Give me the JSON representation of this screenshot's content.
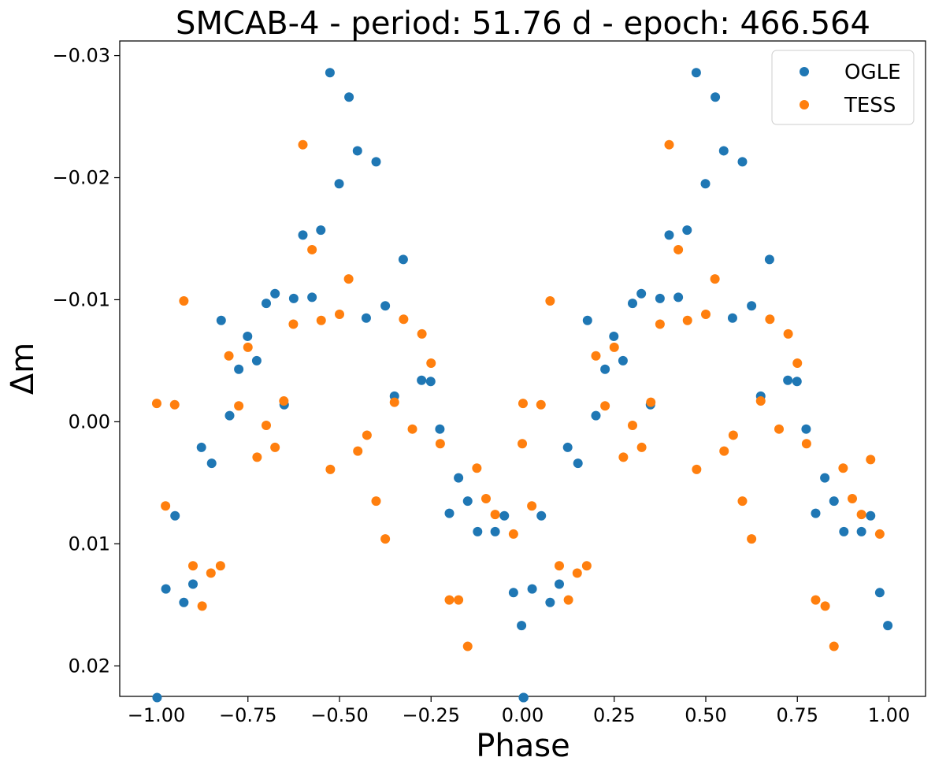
{
  "chart_data": {
    "type": "scatter",
    "title": "SMCAB-4 - period: 51.76 d - epoch: 466.564",
    "xlabel": "Phase",
    "ylabel": "Δm",
    "xlim": [
      -1.1,
      1.1
    ],
    "ylim": [
      0.0225,
      -0.0312
    ],
    "y_inverted": true,
    "x_ticks": [
      -1.0,
      -0.75,
      -0.5,
      -0.25,
      0.0,
      0.25,
      0.5,
      0.75,
      1.0
    ],
    "x_tick_labels": [
      "−1.00",
      "−0.75",
      "−0.50",
      "−0.25",
      "0.00",
      "0.25",
      "0.50",
      "0.75",
      "1.00"
    ],
    "y_ticks": [
      0.02,
      0.01,
      0.0,
      -0.01,
      -0.02,
      -0.03
    ],
    "y_tick_labels": [
      "0.02",
      "0.01",
      "0.00",
      "−0.01",
      "−0.02",
      "−0.03"
    ],
    "grid": false,
    "legend_position": "top-right",
    "series": [
      {
        "name": "OGLE",
        "color": "#1f77b4",
        "x": [
          -0.526,
          -0.474,
          -0.451,
          -0.4,
          -0.501,
          -0.326,
          -0.551,
          -0.6,
          -0.625,
          -0.575,
          -0.676,
          -0.7,
          -0.427,
          -0.375,
          -0.823,
          -0.751,
          -0.726,
          -0.775,
          -0.276,
          -0.35,
          -0.251,
          -0.651,
          -0.8,
          -0.226,
          -0.877,
          -0.849,
          -0.175,
          -0.15,
          -0.2,
          -0.05,
          -0.123,
          -0.075,
          -0.949,
          -0.974,
          -0.9,
          -0.025,
          -0.925,
          -0.003,
          -0.998,
          0.003,
          0.474,
          0.526,
          0.549,
          0.6,
          0.499,
          0.674,
          0.449,
          0.4,
          0.375,
          0.425,
          0.324,
          0.3,
          0.573,
          0.625,
          0.177,
          0.249,
          0.274,
          0.225,
          0.724,
          0.65,
          0.749,
          0.349,
          0.2,
          0.774,
          0.123,
          0.151,
          0.825,
          0.85,
          0.8,
          0.95,
          0.877,
          0.925,
          0.051,
          0.026,
          0.1,
          0.975,
          0.075,
          0.997,
          0.002
        ],
        "y": [
          -0.0286,
          -0.0266,
          -0.0222,
          -0.0213,
          -0.0195,
          -0.0133,
          -0.0157,
          -0.0153,
          -0.0101,
          -0.0102,
          -0.0105,
          -0.0097,
          -0.0085,
          -0.0095,
          -0.0083,
          -0.007,
          -0.005,
          -0.0043,
          -0.0034,
          -0.0021,
          -0.0033,
          -0.0014,
          -0.0005,
          0.0006,
          0.0021,
          0.0034,
          0.0046,
          0.0065,
          0.0075,
          0.0077,
          0.009,
          0.009,
          0.0077,
          0.0137,
          0.0133,
          0.014,
          0.0148,
          0.0167,
          0.0226,
          0.0226,
          -0.0286,
          -0.0266,
          -0.0222,
          -0.0213,
          -0.0195,
          -0.0133,
          -0.0157,
          -0.0153,
          -0.0101,
          -0.0102,
          -0.0105,
          -0.0097,
          -0.0085,
          -0.0095,
          -0.0083,
          -0.007,
          -0.005,
          -0.0043,
          -0.0034,
          -0.0021,
          -0.0033,
          -0.0014,
          -0.0005,
          0.0006,
          0.0021,
          0.0034,
          0.0046,
          0.0065,
          0.0075,
          0.0077,
          0.009,
          0.009,
          0.0077,
          0.0137,
          0.0133,
          0.014,
          0.0148,
          0.0167,
          0.0226
        ]
      },
      {
        "name": "TESS",
        "color": "#ff7f0e",
        "x": [
          -0.6,
          -0.575,
          -0.475,
          -0.925,
          -0.5,
          -0.55,
          -0.325,
          -0.626,
          -0.275,
          -0.802,
          -0.75,
          -0.25,
          -0.999,
          -0.95,
          -0.652,
          -0.775,
          -0.35,
          -0.7,
          -0.301,
          -0.425,
          -0.225,
          -0.676,
          -0.45,
          -0.725,
          -0.525,
          -0.125,
          -0.075,
          -0.4,
          -0.975,
          -0.1,
          -0.375,
          -0.025,
          -0.9,
          -0.825,
          -0.851,
          -0.2,
          -0.175,
          -0.875,
          -0.15,
          0.4,
          0.425,
          0.525,
          0.075,
          0.5,
          0.45,
          0.675,
          0.375,
          0.725,
          0.2,
          0.25,
          0.75,
          0.001,
          0.05,
          0.65,
          0.225,
          0.35,
          0.3,
          0.7,
          0.575,
          0.775,
          0.325,
          0.55,
          0.275,
          0.475,
          0.875,
          0.95,
          0.6,
          0.025,
          0.9,
          0.625,
          0.975,
          0.1,
          0.175,
          0.149,
          0.8,
          0.826,
          0.125,
          0.85,
          0.925,
          -0.001
        ],
        "y": [
          -0.0227,
          -0.0141,
          -0.0117,
          -0.0099,
          -0.0088,
          -0.0083,
          -0.0084,
          -0.008,
          -0.0072,
          -0.0054,
          -0.0061,
          -0.0048,
          -0.0015,
          -0.0014,
          -0.0017,
          -0.0013,
          -0.0016,
          0.0003,
          0.0006,
          0.0011,
          0.0018,
          0.0021,
          0.0024,
          0.0029,
          0.0039,
          0.0038,
          0.0076,
          0.0065,
          0.0069,
          0.0063,
          0.0096,
          0.0092,
          0.0118,
          0.0118,
          0.0124,
          0.0146,
          0.0146,
          0.0151,
          0.0184,
          -0.0227,
          -0.0141,
          -0.0117,
          -0.0099,
          -0.0088,
          -0.0083,
          -0.0084,
          -0.008,
          -0.0072,
          -0.0054,
          -0.0061,
          -0.0048,
          -0.0015,
          -0.0014,
          -0.0017,
          -0.0013,
          -0.0016,
          0.0003,
          0.0006,
          0.0011,
          0.0018,
          0.0021,
          0.0024,
          0.0029,
          0.0039,
          0.0038,
          0.0031,
          0.0065,
          0.0069,
          0.0063,
          0.0096,
          0.0092,
          0.0118,
          0.0118,
          0.0124,
          0.0146,
          0.0151,
          0.0146,
          0.0184,
          0.0076,
          0.0018
        ]
      }
    ]
  }
}
